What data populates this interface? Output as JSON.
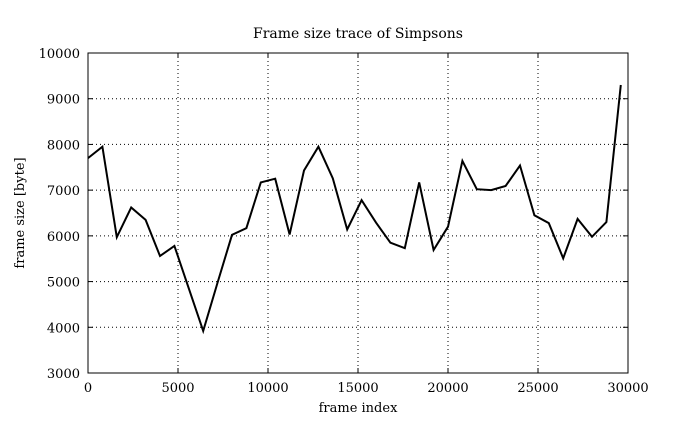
{
  "chart_data": {
    "type": "line",
    "title": "Frame size trace of Simpsons",
    "xlabel": "frame index",
    "ylabel": "frame size [byte]",
    "xlim": [
      0,
      30000
    ],
    "ylim": [
      3000,
      10000
    ],
    "x_ticks": [
      0,
      5000,
      10000,
      15000,
      20000,
      25000,
      30000
    ],
    "y_ticks": [
      3000,
      4000,
      5000,
      6000,
      7000,
      8000,
      9000,
      10000
    ],
    "x_tick_labels": [
      "0",
      "5000",
      "10000",
      "15000",
      "20000",
      "25000",
      "30000"
    ],
    "y_tick_labels": [
      "3000",
      "4000",
      "5000",
      "6000",
      "7000",
      "8000",
      "9000",
      "10000"
    ],
    "grid": true,
    "series": [
      {
        "color": "#000000",
        "x": [
          0,
          800,
          1600,
          2400,
          3200,
          4000,
          4800,
          5600,
          6400,
          7200,
          8000,
          8800,
          9600,
          10400,
          11200,
          12000,
          12800,
          13600,
          14400,
          15200,
          16000,
          16800,
          17600,
          18400,
          19200,
          20000,
          20800,
          21600,
          22400,
          23200,
          24000,
          24800,
          25600,
          26400,
          27200,
          28000,
          28800,
          29600
        ],
        "y": [
          7700,
          7950,
          5970,
          6620,
          6350,
          5560,
          5780,
          4850,
          3920,
          4980,
          6020,
          6170,
          7170,
          7250,
          6030,
          7430,
          7950,
          7260,
          6140,
          6780,
          6290,
          5850,
          5730,
          7170,
          5690,
          6200,
          7640,
          7020,
          7000,
          7090,
          7540,
          6450,
          6280,
          5510,
          6370,
          5980,
          6300,
          9300
        ]
      }
    ]
  }
}
